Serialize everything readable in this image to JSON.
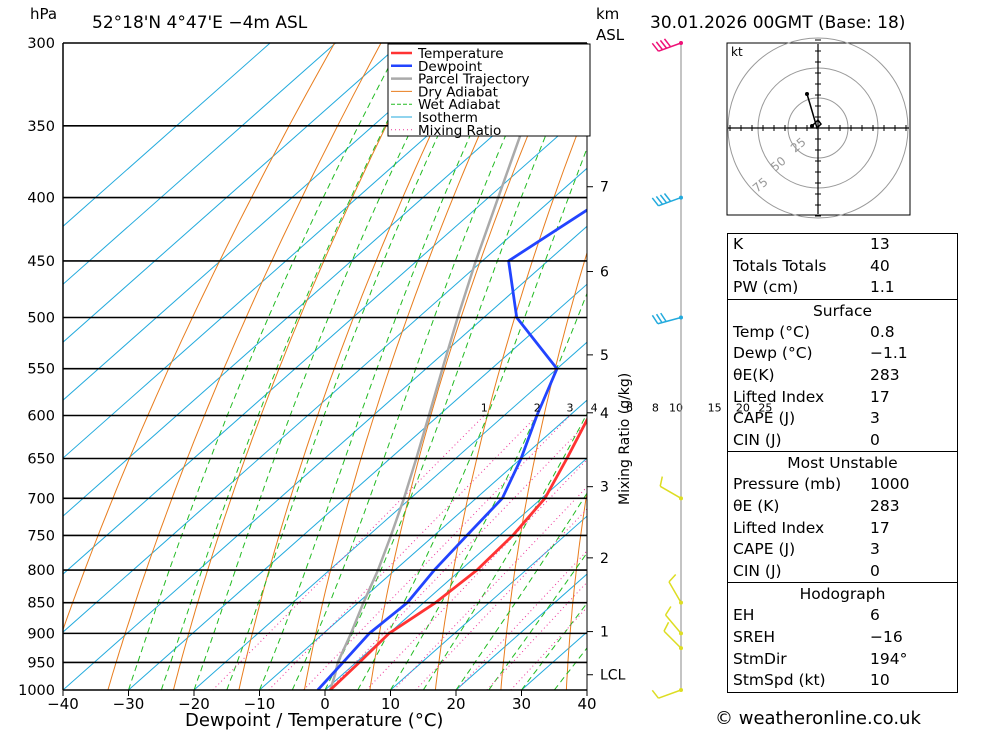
{
  "header": {
    "location": "52°18'N  4°47'E  −4m  ASL",
    "run": "30.01.2026  00GMT  (Base: 18)",
    "pressure_unit": "hPa",
    "height_unit_1": "km",
    "height_unit_2": "ASL"
  },
  "chart_data": {
    "type": "line",
    "title": "Skew-T log-P diagram",
    "xlabel": "Dewpoint / Temperature (°C)",
    "ylabel": "hPa",
    "xlim": [
      -40,
      40
    ],
    "ylim": [
      1000,
      300
    ],
    "x_ticks": [
      "−40",
      "−30",
      "−20",
      "−10",
      "0",
      "10",
      "20",
      "30",
      "40"
    ],
    "pressure_levels": [
      300,
      350,
      400,
      450,
      500,
      550,
      600,
      650,
      700,
      750,
      800,
      850,
      900,
      950,
      1000
    ],
    "height_km_ticks": [
      {
        "label": "7",
        "p": 392
      },
      {
        "label": "6",
        "p": 459
      },
      {
        "label": "5",
        "p": 536
      },
      {
        "label": "4",
        "p": 597
      },
      {
        "label": "3",
        "p": 685
      },
      {
        "label": "2",
        "p": 782
      },
      {
        "label": "1",
        "p": 897
      },
      {
        "label": "LCL",
        "p": 972
      }
    ],
    "mixing_ratio_axis_label": "Mixing Ratio (g/kg)",
    "mixing_ratio_lines": [
      "1",
      "2",
      "3",
      "4",
      "6",
      "8",
      "10",
      "15",
      "20",
      "25"
    ],
    "legend": [
      "Temperature",
      "Dewpoint",
      "Parcel Trajectory",
      "Dry Adiabat",
      "Wet Adiabat",
      "Isotherm",
      "Mixing Ratio"
    ],
    "legend_colors": [
      "#ff3333",
      "#2244ff",
      "#aaaaaa",
      "#e87d1e",
      "#22bb22",
      "#22aadd",
      "#ee3399"
    ],
    "series": [
      {
        "name": "Temperature",
        "points": [
          [
            1000,
            0.8
          ],
          [
            950,
            0.5
          ],
          [
            900,
            0
          ],
          [
            850,
            1.8
          ],
          [
            800,
            2.5
          ],
          [
            750,
            2
          ],
          [
            700,
            0.5
          ],
          [
            650,
            -3
          ],
          [
            600,
            -7
          ],
          [
            550,
            -12
          ],
          [
            500,
            -17
          ],
          [
            450,
            -24
          ],
          [
            400,
            -30
          ],
          [
            350,
            -37
          ],
          [
            300,
            -42
          ]
        ]
      },
      {
        "name": "Dewpoint",
        "points": [
          [
            1000,
            -1.1
          ],
          [
            950,
            -2
          ],
          [
            900,
            -3
          ],
          [
            850,
            -2.5
          ],
          [
            800,
            -4
          ],
          [
            750,
            -5
          ],
          [
            700,
            -6
          ],
          [
            650,
            -10
          ],
          [
            600,
            -15
          ],
          [
            550,
            -20
          ],
          [
            500,
            -35
          ],
          [
            450,
            -46
          ],
          [
            400,
            -42
          ],
          [
            350,
            -43
          ],
          [
            300,
            -47
          ]
        ]
      },
      {
        "name": "Parcel Trajectory",
        "points": [
          [
            1000,
            0.8
          ],
          [
            972,
            -1.1
          ],
          [
            950,
            -2.8
          ],
          [
            900,
            -5.8
          ],
          [
            850,
            -9.2
          ],
          [
            800,
            -12.6
          ],
          [
            750,
            -16.6
          ],
          [
            700,
            -21
          ],
          [
            650,
            -26
          ],
          [
            600,
            -31.5
          ],
          [
            550,
            -37.5
          ],
          [
            500,
            -44
          ],
          [
            450,
            -51
          ],
          [
            400,
            -58.5
          ],
          [
            350,
            -67
          ],
          [
            300,
            -76
          ]
        ]
      }
    ],
    "wind_barbs": [
      {
        "p": 300,
        "dir": 250,
        "kt": 45
      },
      {
        "p": 400,
        "dir": 250,
        "kt": 40
      },
      {
        "p": 500,
        "dir": 255,
        "kt": 35
      },
      {
        "p": 700,
        "dir": 300,
        "kt": 10
      },
      {
        "p": 850,
        "dir": 330,
        "kt": 10
      },
      {
        "p": 900,
        "dir": 320,
        "kt": 10
      },
      {
        "p": 925,
        "dir": 315,
        "kt": 10
      },
      {
        "p": 1000,
        "dir": 250,
        "kt": 10
      }
    ],
    "hodograph": {
      "unit": "kt",
      "rings": [
        "25",
        "50",
        "75"
      ]
    }
  },
  "indices": {
    "general": [
      {
        "label": "K",
        "value": "13"
      },
      {
        "label": "Totals Totals",
        "value": "40"
      },
      {
        "label": "PW (cm)",
        "value": "1.1"
      }
    ],
    "surface_title": "Surface",
    "surface": [
      {
        "label": "Temp (°C)",
        "value": "0.8"
      },
      {
        "label": "Dewp (°C)",
        "value": "−1.1"
      },
      {
        "label": "θE(K)",
        "value": "283"
      },
      {
        "label": "Lifted Index",
        "value": "17"
      },
      {
        "label": "CAPE (J)",
        "value": "3"
      },
      {
        "label": "CIN (J)",
        "value": "0"
      }
    ],
    "mu_title": "Most Unstable",
    "mu": [
      {
        "label": "Pressure (mb)",
        "value": "1000"
      },
      {
        "label": "θE (K)",
        "value": "283"
      },
      {
        "label": "Lifted Index",
        "value": "17"
      },
      {
        "label": "CAPE (J)",
        "value": "3"
      },
      {
        "label": "CIN (J)",
        "value": "0"
      }
    ],
    "hodo_title": "Hodograph",
    "hodo": [
      {
        "label": "EH",
        "value": "6"
      },
      {
        "label": "SREH",
        "value": "−16"
      },
      {
        "label": "StmDir",
        "value": "194°"
      },
      {
        "label": "StmSpd (kt)",
        "value": "10"
      }
    ]
  },
  "footer": {
    "copyright": "© weatheronline.co.uk"
  }
}
